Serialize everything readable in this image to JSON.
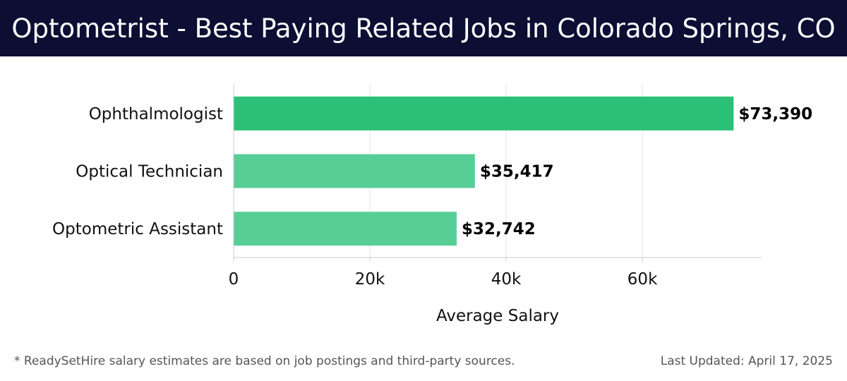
{
  "header": {
    "title": "Optometrist - Best Paying Related Jobs in Colorado Springs, CO"
  },
  "chart_data": {
    "type": "bar",
    "orientation": "horizontal",
    "categories": [
      "Ophthalmologist",
      "Optical Technician",
      "Optometric Assistant"
    ],
    "values": [
      73390,
      35417,
      32742
    ],
    "value_labels": [
      "$73,390",
      "$35,417",
      "$32,742"
    ],
    "xlabel": "Average Salary",
    "ylabel": "",
    "xlim": [
      0,
      77500
    ],
    "x_ticks": [
      0,
      20000,
      40000,
      60000
    ],
    "x_tick_labels": [
      "0",
      "20k",
      "40k",
      "60k"
    ],
    "grid": true,
    "colors": [
      "#2ac075",
      "#58ce97",
      "#58ce97"
    ]
  },
  "footer": {
    "note": "* ReadySetHire salary estimates are based on job postings and third-party sources.",
    "updated": "Last Updated: April 17, 2025"
  }
}
